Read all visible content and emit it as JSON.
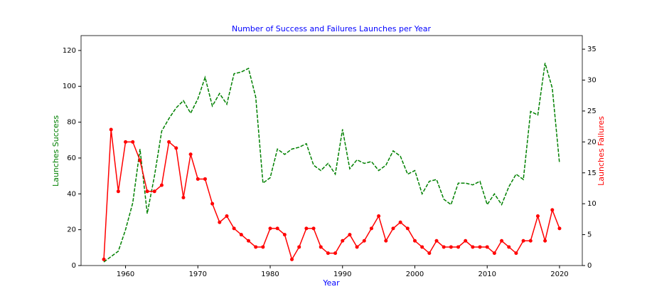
{
  "chart_data": {
    "type": "line",
    "title": "Number of Success and Failures Launches per Year",
    "xlabel": "Year",
    "ylabel": "Launches Success",
    "y2label": "Launches Failures",
    "x": [
      1957,
      1958,
      1959,
      1960,
      1961,
      1962,
      1963,
      1964,
      1965,
      1966,
      1967,
      1968,
      1969,
      1970,
      1971,
      1972,
      1973,
      1974,
      1975,
      1976,
      1977,
      1978,
      1979,
      1980,
      1981,
      1982,
      1983,
      1984,
      1985,
      1986,
      1987,
      1988,
      1989,
      1990,
      1991,
      1992,
      1993,
      1994,
      1995,
      1996,
      1997,
      1998,
      1999,
      2000,
      2001,
      2002,
      2003,
      2004,
      2005,
      2006,
      2007,
      2008,
      2009,
      2010,
      2011,
      2012,
      2013,
      2014,
      2015,
      2016,
      2017,
      2018,
      2019,
      2020
    ],
    "series": [
      {
        "color": "green",
        "linestyle": "--",
        "axis": "y",
        "values": [
          2,
          5,
          8,
          20,
          35,
          65,
          29,
          50,
          75,
          82,
          88,
          92,
          85,
          93,
          105,
          89,
          96,
          90,
          107,
          108,
          110,
          94,
          46,
          49,
          65,
          62,
          65,
          66,
          68,
          56,
          53,
          57,
          51,
          76,
          54,
          59,
          57,
          58,
          53,
          56,
          64,
          61,
          51,
          53,
          40,
          47,
          48,
          37,
          34,
          46,
          46,
          45,
          47,
          34,
          40,
          34,
          44,
          51,
          48,
          86,
          84,
          113,
          99,
          57
        ]
      },
      {
        "color": "red",
        "linestyle": "-",
        "marker": "o",
        "axis": "y2",
        "values": [
          1,
          22,
          12,
          20,
          20,
          17,
          12,
          12,
          13,
          20,
          19,
          11,
          18,
          14,
          14,
          10,
          7,
          8,
          6,
          5,
          4,
          3,
          3,
          6,
          6,
          5,
          1,
          3,
          6,
          6,
          3,
          2,
          2,
          4,
          5,
          3,
          4,
          6,
          8,
          4,
          6,
          7,
          6,
          4,
          3,
          2,
          4,
          3,
          3,
          3,
          4,
          3,
          3,
          3,
          2,
          4,
          3,
          2,
          4,
          4,
          8,
          4,
          9,
          6
        ]
      }
    ],
    "xlim": [
      1953.85,
      2023.15
    ],
    "xticks": [
      1960,
      1970,
      1980,
      1990,
      2000,
      2010,
      2020
    ],
    "ylim": [
      0,
      128.3
    ],
    "yticks": [
      0,
      20,
      40,
      60,
      80,
      100,
      120
    ],
    "y2lim": [
      0,
      37.2
    ],
    "y2ticks": [
      0,
      5,
      10,
      15,
      20,
      25,
      30,
      35
    ],
    "title_color": "blue",
    "xlabel_color": "blue",
    "ylabel_color": "green",
    "y2label_color": "red"
  }
}
